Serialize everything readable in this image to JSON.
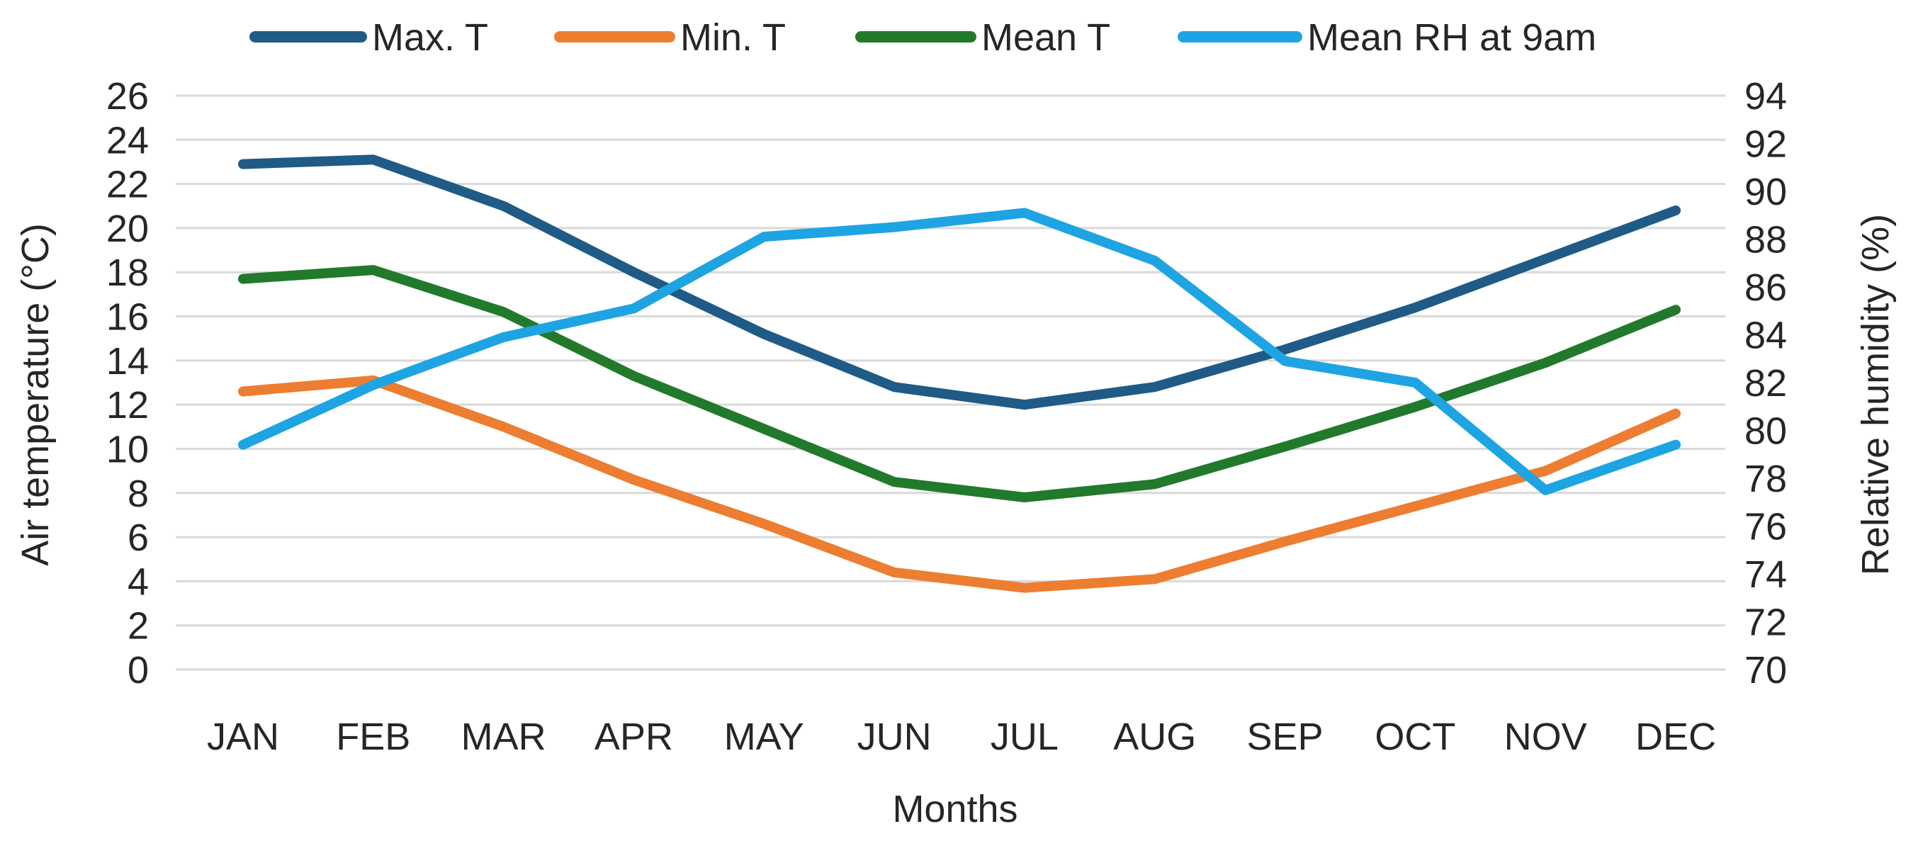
{
  "chart_data": {
    "type": "line",
    "categories": [
      "JAN",
      "FEB",
      "MAR",
      "APR",
      "MAY",
      "JUN",
      "JUL",
      "AUG",
      "SEP",
      "OCT",
      "NOV",
      "DEC"
    ],
    "xlabel": "Months",
    "ylabel_left": "Air temperature (°C)",
    "ylabel_right": "Relative humidity (%)",
    "ylim_left": [
      0,
      26
    ],
    "ylim_right": [
      70,
      94
    ],
    "yticks_left": [
      0,
      2,
      4,
      6,
      8,
      10,
      12,
      14,
      16,
      18,
      20,
      22,
      24,
      26
    ],
    "yticks_right": [
      70,
      72,
      74,
      76,
      78,
      80,
      82,
      84,
      86,
      88,
      90,
      92,
      94
    ],
    "grid": true,
    "legend_position": "top",
    "series": [
      {
        "name": "Max. T",
        "axis": "left",
        "color": "#1f5b86",
        "values": [
          22.9,
          23.1,
          21.0,
          18.0,
          15.2,
          12.8,
          12.0,
          12.8,
          14.5,
          16.4,
          18.6,
          20.8
        ]
      },
      {
        "name": "Min. T",
        "axis": "left",
        "color": "#ed7d31",
        "values": [
          12.6,
          13.1,
          11.0,
          8.6,
          6.6,
          4.4,
          3.7,
          4.1,
          5.8,
          7.4,
          9.0,
          11.6
        ]
      },
      {
        "name": "Mean T",
        "axis": "left",
        "color": "#217a2b",
        "values": [
          17.7,
          18.1,
          16.2,
          13.3,
          10.9,
          8.5,
          7.8,
          8.4,
          10.1,
          11.9,
          13.9,
          16.3
        ]
      },
      {
        "name": "Mean RH at 9am",
        "axis": "right",
        "color": "#1ea4e2",
        "values": [
          79.4,
          81.9,
          83.9,
          85.1,
          88.1,
          88.5,
          89.1,
          87.1,
          82.9,
          82.0,
          77.5,
          79.4
        ]
      }
    ]
  }
}
